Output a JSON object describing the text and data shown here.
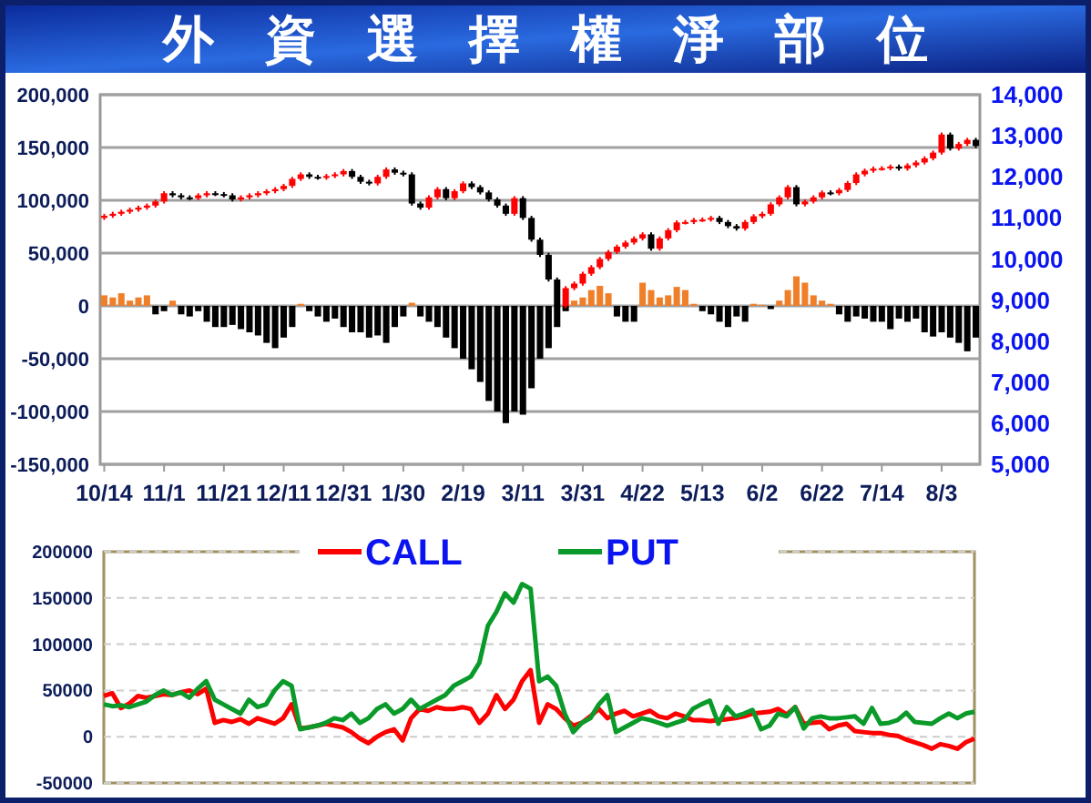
{
  "chart_data": [
    {
      "type": "bar",
      "title": "外資選擇權淨部位",
      "categories": [
        "10/14",
        null,
        null,
        null,
        null,
        null,
        null,
        "11/1",
        null,
        null,
        null,
        null,
        null,
        null,
        "11/21",
        null,
        null,
        null,
        null,
        null,
        null,
        "12/11",
        null,
        null,
        null,
        null,
        null,
        null,
        "12/31",
        null,
        null,
        null,
        null,
        null,
        null,
        "1/30",
        null,
        null,
        null,
        null,
        null,
        null,
        "2/19",
        null,
        null,
        null,
        null,
        null,
        null,
        "3/11",
        null,
        null,
        null,
        null,
        null,
        null,
        "3/31",
        null,
        null,
        null,
        null,
        null,
        null,
        "4/22",
        null,
        null,
        null,
        null,
        null,
        null,
        "5/13",
        null,
        null,
        null,
        null,
        null,
        null,
        "6/2",
        null,
        null,
        null,
        null,
        null,
        null,
        "6/22",
        null,
        null,
        null,
        null,
        null,
        null,
        "7/14",
        null,
        null,
        null,
        null,
        null,
        null,
        "8/3",
        null,
        null,
        null,
        null
      ],
      "series": [
        {
          "values": [
            10000,
            8000,
            12000,
            5000,
            8000,
            10000,
            -8000,
            -5000,
            5000,
            -8000,
            -10000,
            -5000,
            -15000,
            -20000,
            -20000,
            -18000,
            -22000,
            -25000,
            -28000,
            -35000,
            -40000,
            -30000,
            -20000,
            2000,
            -5000,
            -10000,
            -15000,
            -12000,
            -20000,
            -25000,
            -25000,
            -30000,
            -28000,
            -35000,
            -20000,
            -10000,
            3000,
            -10000,
            -15000,
            -20000,
            -30000,
            -40000,
            -50000,
            -60000,
            -72000,
            -90000,
            -100000,
            -111000,
            -100000,
            -103000,
            -78000,
            -50000,
            -40000,
            -20000,
            -5000,
            5000,
            8000,
            15000,
            19000,
            12000,
            -10000,
            -15000,
            -15000,
            22000,
            15000,
            8000,
            10000,
            18000,
            15000,
            2000,
            -5000,
            -8000,
            -15000,
            -20000,
            -10000,
            -15000,
            2000,
            1000,
            -3000,
            5000,
            15000,
            28000,
            22000,
            10000,
            5000,
            2000,
            -8000,
            -15000,
            -10000,
            -12000,
            -15000,
            -15000,
            -22000,
            -12000,
            -15000,
            -12000,
            -25000,
            -29000,
            -25000,
            -30000,
            -35000,
            -43000,
            -30000
          ],
          "colors": [
            "#f07f2a",
            "#f07f2a",
            "#f07f2a",
            "#f07f2a",
            "#f07f2a",
            "#f07f2a",
            "#000000",
            "#000000",
            "#f07f2a",
            "#000000",
            "#000000",
            "#000000",
            "#000000",
            "#000000",
            "#000000",
            "#000000",
            "#000000",
            "#000000",
            "#000000",
            "#000000",
            "#000000",
            "#000000",
            "#000000",
            "#f07f2a",
            "#000000",
            "#000000",
            "#000000",
            "#000000",
            "#000000",
            "#000000",
            "#000000",
            "#000000",
            "#000000",
            "#000000",
            "#000000",
            "#000000",
            "#f07f2a",
            "#000000",
            "#000000",
            "#000000",
            "#000000",
            "#000000",
            "#000000",
            "#000000",
            "#000000",
            "#000000",
            "#000000",
            "#000000",
            "#000000",
            "#000000",
            "#000000",
            "#000000",
            "#000000",
            "#000000",
            "#000000",
            "#f07f2a",
            "#f07f2a",
            "#f07f2a",
            "#f07f2a",
            "#f07f2a",
            "#000000",
            "#000000",
            "#000000",
            "#f07f2a",
            "#f07f2a",
            "#f07f2a",
            "#f07f2a",
            "#f07f2a",
            "#f07f2a",
            "#f07f2a",
            "#000000",
            "#000000",
            "#000000",
            "#000000",
            "#000000",
            "#000000",
            "#f07f2a",
            "#f07f2a",
            "#000000",
            "#f07f2a",
            "#f07f2a",
            "#f07f2a",
            "#f07f2a",
            "#f07f2a",
            "#f07f2a",
            "#f07f2a",
            "#000000",
            "#000000",
            "#000000",
            "#000000",
            "#000000",
            "#000000",
            "#000000",
            "#000000",
            "#000000",
            "#000000",
            "#000000",
            "#000000",
            "#000000",
            "#000000",
            "#000000",
            "#000000",
            "#000000"
          ]
        },
        {
          "type": "candlestick",
          "axis": "y2",
          "colors": [
            "#ff0000",
            "#ff0000",
            "#ff0000",
            "#ff0000",
            "#ff0000",
            "#ff0000",
            "#ff0000",
            "#ff0000",
            "#000000",
            "#000000",
            "#000000",
            "#ff0000",
            "#ff0000",
            "#000000",
            "#000000",
            "#000000",
            "#ff0000",
            "#ff0000",
            "#ff0000",
            "#ff0000",
            "#ff0000",
            "#ff0000",
            "#ff0000",
            "#ff0000",
            "#000000",
            "#000000",
            "#ff0000",
            "#ff0000",
            "#ff0000",
            "#000000",
            "#000000",
            "#000000",
            "#ff0000",
            "#ff0000",
            "#000000",
            "#000000",
            "#000000",
            "#000000",
            "#ff0000",
            "#ff0000",
            "#000000",
            "#ff0000",
            "#ff0000",
            "#000000",
            "#000000",
            "#000000",
            "#000000",
            "#000000",
            "#ff0000",
            "#000000",
            "#000000",
            "#000000",
            "#000000",
            "#000000",
            "#ff0000",
            "#ff0000",
            "#ff0000",
            "#ff0000",
            "#ff0000",
            "#ff0000",
            "#ff0000",
            "#ff0000",
            "#ff0000",
            "#ff0000",
            "#000000",
            "#ff0000",
            "#ff0000",
            "#ff0000",
            "#ff0000",
            "#ff0000",
            "#ff0000",
            "#ff0000",
            "#000000",
            "#000000",
            "#000000",
            "#ff0000",
            "#ff0000",
            "#ff0000",
            "#ff0000",
            "#ff0000",
            "#ff0000",
            "#000000",
            "#ff0000",
            "#ff0000",
            "#ff0000",
            "#000000",
            "#ff0000",
            "#ff0000",
            "#ff0000",
            "#ff0000",
            "#ff0000",
            "#ff0000",
            "#ff0000",
            "#000000",
            "#ff0000",
            "#ff0000",
            "#ff0000",
            "#ff0000",
            "#ff0000",
            "#000000",
            "#ff0000",
            "#ff0000",
            "#000000"
          ],
          "ohlc": [
            [
              11000,
              11100,
              10950,
              11050
            ],
            [
              11050,
              11150,
              11000,
              11100
            ],
            [
              11100,
              11200,
              11050,
              11150
            ],
            [
              11150,
              11250,
              11100,
              11200
            ],
            [
              11200,
              11300,
              11150,
              11250
            ],
            [
              11250,
              11350,
              11200,
              11300
            ],
            [
              11300,
              11450,
              11250,
              11400
            ],
            [
              11400,
              11650,
              11350,
              11600
            ],
            [
              11600,
              11650,
              11500,
              11550
            ],
            [
              11550,
              11600,
              11450,
              11500
            ],
            [
              11500,
              11550,
              11430,
              11480
            ],
            [
              11480,
              11600,
              11430,
              11550
            ],
            [
              11550,
              11650,
              11500,
              11600
            ],
            [
              11600,
              11650,
              11530,
              11580
            ],
            [
              11580,
              11630,
              11500,
              11550
            ],
            [
              11550,
              11600,
              11400,
              11450
            ],
            [
              11450,
              11550,
              11400,
              11500
            ],
            [
              11500,
              11600,
              11450,
              11550
            ],
            [
              11550,
              11650,
              11500,
              11600
            ],
            [
              11600,
              11700,
              11550,
              11650
            ],
            [
              11650,
              11750,
              11600,
              11700
            ],
            [
              11700,
              11830,
              11650,
              11780
            ],
            [
              11780,
              12000,
              11730,
              11950
            ],
            [
              11950,
              12110,
              11900,
              12060
            ],
            [
              12060,
              12110,
              11950,
              12000
            ],
            [
              12000,
              12050,
              11930,
              11980
            ],
            [
              11980,
              12070,
              11930,
              12020
            ],
            [
              12020,
              12110,
              11970,
              12060
            ],
            [
              12060,
              12190,
              12010,
              12140
            ],
            [
              12140,
              12190,
              11950,
              12000
            ],
            [
              12000,
              12050,
              11830,
              11880
            ],
            [
              11880,
              11930,
              11790,
              11840
            ],
            [
              11840,
              12050,
              11790,
              12000
            ],
            [
              12000,
              12230,
              11950,
              12180
            ],
            [
              12180,
              12230,
              12050,
              12100
            ],
            [
              12100,
              12150,
              12010,
              12060
            ],
            [
              12060,
              12110,
              11300,
              11350
            ],
            [
              11350,
              11400,
              11200,
              11250
            ],
            [
              11250,
              11550,
              11200,
              11500
            ],
            [
              11500,
              11750,
              11450,
              11700
            ],
            [
              11700,
              11750,
              11430,
              11480
            ],
            [
              11480,
              11700,
              11430,
              11650
            ],
            [
              11650,
              11890,
              11600,
              11840
            ],
            [
              11840,
              11890,
              11700,
              11750
            ],
            [
              11750,
              11800,
              11570,
              11620
            ],
            [
              11620,
              11670,
              11400,
              11450
            ],
            [
              11450,
              11500,
              11250,
              11300
            ],
            [
              11300,
              11350,
              11050,
              11100
            ],
            [
              11100,
              11530,
              11050,
              11480
            ],
            [
              11480,
              11530,
              10950,
              11000
            ],
            [
              11000,
              11050,
              10420,
              10470
            ],
            [
              10470,
              10520,
              10050,
              10100
            ],
            [
              10100,
              10150,
              9450,
              9500
            ],
            [
              9500,
              9550,
              8800,
              8850
            ],
            [
              8850,
              9340,
              8800,
              9290
            ],
            [
              9290,
              9450,
              9240,
              9400
            ],
            [
              9400,
              9690,
              9350,
              9640
            ],
            [
              9640,
              9850,
              9590,
              9800
            ],
            [
              9800,
              10050,
              9750,
              10000
            ],
            [
              10000,
              10220,
              9950,
              10170
            ],
            [
              10170,
              10350,
              10120,
              10300
            ],
            [
              10300,
              10450,
              10250,
              10400
            ],
            [
              10400,
              10550,
              10350,
              10500
            ],
            [
              10500,
              10650,
              10450,
              10600
            ],
            [
              10600,
              10650,
              10200,
              10250
            ],
            [
              10250,
              10550,
              10200,
              10500
            ],
            [
              10500,
              10750,
              10450,
              10700
            ],
            [
              10700,
              10940,
              10650,
              10890
            ],
            [
              10890,
              10950,
              10840,
              10900
            ],
            [
              10900,
              11000,
              10850,
              10950
            ],
            [
              10950,
              11010,
              10900,
              10960
            ],
            [
              10960,
              11050,
              10910,
              11000
            ],
            [
              11000,
              11050,
              10850,
              10900
            ],
            [
              10900,
              10950,
              10750,
              10800
            ],
            [
              10800,
              10850,
              10690,
              10740
            ],
            [
              10740,
              10950,
              10690,
              10900
            ],
            [
              10900,
              11090,
              10850,
              11040
            ],
            [
              11040,
              11150,
              10990,
              11100
            ],
            [
              11100,
              11380,
              11050,
              11330
            ],
            [
              11330,
              11550,
              11280,
              11500
            ],
            [
              11500,
              11800,
              11450,
              11750
            ],
            [
              11750,
              11800,
              11280,
              11330
            ],
            [
              11330,
              11450,
              11280,
              11400
            ],
            [
              11400,
              11550,
              11350,
              11500
            ],
            [
              11500,
              11670,
              11450,
              11620
            ],
            [
              11620,
              11670,
              11550,
              11600
            ],
            [
              11600,
              11730,
              11550,
              11680
            ],
            [
              11680,
              11900,
              11630,
              11850
            ],
            [
              11850,
              12110,
              11800,
              12060
            ],
            [
              12060,
              12200,
              12010,
              12150
            ],
            [
              12150,
              12250,
              12100,
              12200
            ],
            [
              12200,
              12260,
              12150,
              12210
            ],
            [
              12210,
              12300,
              12160,
              12250
            ],
            [
              12250,
              12300,
              12150,
              12200
            ],
            [
              12200,
              12330,
              12150,
              12280
            ],
            [
              12280,
              12400,
              12230,
              12350
            ],
            [
              12350,
              12500,
              12300,
              12450
            ],
            [
              12450,
              12640,
              12400,
              12590
            ],
            [
              12590,
              13080,
              12540,
              13030
            ],
            [
              13030,
              13080,
              12640,
              12690
            ],
            [
              12690,
              12850,
              12640,
              12800
            ],
            [
              12800,
              12950,
              12750,
              12900
            ],
            [
              12900,
              12950,
              12700,
              12750
            ]
          ]
        }
      ],
      "ylim": [
        -150000,
        200000
      ],
      "yticks": [
        {
          "value": -150000,
          "label": "-150,000"
        },
        {
          "value": -100000,
          "label": "-100,000"
        },
        {
          "value": -50000,
          "label": "-50,000"
        },
        0,
        {
          "value": 50000,
          "label": "50,000"
        },
        {
          "value": 100000,
          "label": "100,000"
        },
        {
          "value": 150000,
          "label": "150,000"
        },
        {
          "value": 200000,
          "label": "200,000"
        }
      ],
      "y2lim": [
        5000,
        14000
      ],
      "y2ticks": [
        {
          "value": 5000,
          "label": "5,000"
        },
        {
          "value": 6000,
          "label": "6,000"
        },
        {
          "value": 7000,
          "label": "7,000"
        },
        {
          "value": 8000,
          "label": "8,000"
        },
        {
          "value": 9000,
          "label": "9,000"
        },
        {
          "value": 10000,
          "label": "10,000"
        },
        {
          "value": 11000,
          "label": "11,000"
        },
        {
          "value": 12000,
          "label": "12,000"
        },
        {
          "value": 13000,
          "label": "13,000"
        },
        {
          "value": 14000,
          "label": "14,000"
        }
      ],
      "grid": "y"
    },
    {
      "type": "line",
      "categories": [
        null,
        null,
        null,
        null,
        null,
        null,
        null,
        null,
        null,
        null,
        null,
        null,
        null,
        null,
        null,
        null,
        null,
        null,
        null,
        null,
        null,
        null,
        null,
        null,
        null,
        null,
        null,
        null,
        null,
        null,
        null,
        null,
        null,
        null,
        null,
        null,
        null,
        null,
        null,
        null,
        null,
        null,
        null,
        null,
        null,
        null,
        null,
        null,
        null,
        null,
        null,
        null,
        null,
        null,
        null,
        null,
        null,
        null,
        null,
        null,
        null,
        null,
        null,
        null,
        null,
        null,
        null,
        null,
        null,
        null,
        null,
        null,
        null,
        null,
        null,
        null,
        null,
        null,
        null,
        null,
        null,
        null,
        null,
        null,
        null,
        null,
        null,
        null,
        null,
        null,
        null,
        null,
        null,
        null,
        null,
        null,
        null,
        null,
        null,
        null,
        null,
        null,
        null
      ],
      "series": [
        {
          "name": "CALL",
          "color": "#ff0000",
          "values": [
            44000,
            47000,
            31000,
            36000,
            44000,
            42000,
            44000,
            46000,
            45000,
            48000,
            50000,
            46000,
            52000,
            15000,
            18000,
            16000,
            19000,
            14000,
            20000,
            17000,
            14000,
            20000,
            35000,
            9000,
            10000,
            12000,
            14000,
            12000,
            10000,
            5000,
            -2000,
            -7000,
            0,
            5000,
            8000,
            -4000,
            20000,
            30000,
            28000,
            32000,
            30000,
            30000,
            32000,
            30000,
            15000,
            25000,
            45000,
            30000,
            40000,
            60000,
            72000,
            15000,
            35000,
            30000,
            20000,
            12000,
            15000,
            22000,
            30000,
            20000,
            25000,
            28000,
            22000,
            25000,
            28000,
            22000,
            20000,
            25000,
            22000,
            18000,
            18000,
            17000,
            18000,
            19000,
            20000,
            22000,
            25000,
            26000,
            27000,
            30000,
            24000,
            32000,
            14000,
            15000,
            16000,
            8000,
            12000,
            14000,
            6000,
            5000,
            4000,
            4000,
            2000,
            1000,
            -3000,
            -6000,
            -9000,
            -13000,
            -8000,
            -10000,
            -13000,
            -6000,
            -2000
          ]
        },
        {
          "name": "PUT",
          "color": "#0a9a2a",
          "values": [
            35000,
            33000,
            34000,
            32000,
            35000,
            38000,
            45000,
            50000,
            45000,
            48000,
            42000,
            52000,
            60000,
            40000,
            35000,
            30000,
            25000,
            40000,
            32000,
            35000,
            50000,
            60000,
            55000,
            8000,
            10000,
            12000,
            15000,
            20000,
            18000,
            25000,
            15000,
            20000,
            30000,
            35000,
            25000,
            30000,
            40000,
            30000,
            35000,
            40000,
            45000,
            55000,
            60000,
            65000,
            80000,
            120000,
            135000,
            155000,
            145000,
            165000,
            160000,
            60000,
            65000,
            55000,
            25000,
            5000,
            15000,
            20000,
            35000,
            45000,
            5000,
            10000,
            15000,
            20000,
            18000,
            15000,
            12000,
            15000,
            18000,
            30000,
            35000,
            39000,
            14000,
            32000,
            22000,
            25000,
            29000,
            8000,
            12000,
            25000,
            22000,
            32000,
            9000,
            20000,
            22000,
            20000,
            20000,
            21000,
            22000,
            14000,
            31000,
            14000,
            15000,
            18000,
            26000,
            16000,
            15000,
            14000,
            20000,
            25000,
            20000,
            25000,
            27000
          ]
        }
      ],
      "ylim": [
        -50000,
        200000
      ],
      "yticks": [
        -50000,
        0,
        50000,
        100000,
        150000,
        200000
      ],
      "grid": "y",
      "legend": "top",
      "line_style": "solid",
      "tick_labels": "y"
    }
  ]
}
